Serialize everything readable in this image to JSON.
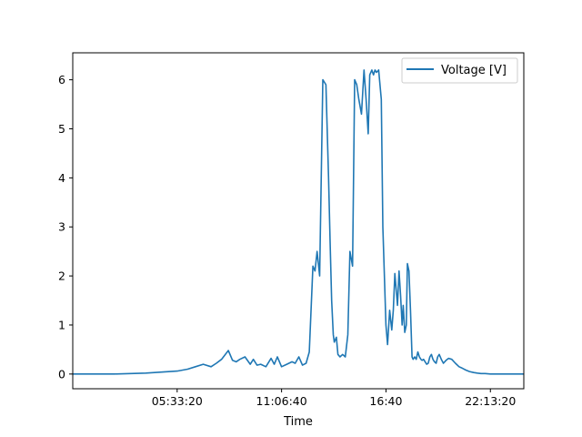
{
  "chart_data": {
    "type": "line",
    "title": "",
    "xlabel": "Time",
    "ylabel": "",
    "x_unit": "seconds since midnight",
    "xlim": [
      0,
      86400
    ],
    "ylim": [
      -0.3,
      6.55
    ],
    "x_ticks": [
      {
        "value": 20000,
        "label": "05:33:20"
      },
      {
        "value": 40000,
        "label": "11:06:40"
      },
      {
        "value": 60000,
        "label": "16:40"
      },
      {
        "value": 80000,
        "label": "22:13:20"
      }
    ],
    "y_ticks": [
      0,
      1,
      2,
      3,
      4,
      5,
      6
    ],
    "grid": false,
    "legend": {
      "position": "top-right",
      "entries": [
        "Voltage [V]"
      ]
    },
    "series": [
      {
        "name": "Voltage [V]",
        "color": "#1f77b4",
        "x": [
          0,
          8000,
          14000,
          17000,
          20000,
          22000,
          23500,
          25000,
          26500,
          27500,
          28500,
          29800,
          30600,
          31300,
          32000,
          33000,
          34000,
          34600,
          35300,
          36000,
          37000,
          38000,
          38600,
          39200,
          40000,
          41000,
          42000,
          42600,
          43300,
          44000,
          44700,
          45300,
          46000,
          46400,
          46800,
          47300,
          47900,
          48500,
          49000,
          49300,
          49600,
          49900,
          50100,
          50500,
          50800,
          51200,
          51700,
          52200,
          52700,
          53100,
          53600,
          54000,
          54400,
          54800,
          55300,
          55800,
          56200,
          56600,
          56900,
          57300,
          57600,
          57900,
          58200,
          58600,
          59100,
          59400,
          59700,
          60000,
          60300,
          60700,
          61100,
          61400,
          61700,
          62200,
          62500,
          62800,
          63100,
          63300,
          63600,
          63900,
          64100,
          64400,
          64700,
          65000,
          65200,
          65500,
          65800,
          66100,
          66400,
          66700,
          66900,
          67200,
          67500,
          67800,
          68100,
          68400,
          68700,
          69000,
          69300,
          69600,
          69900,
          70200,
          70600,
          71000,
          71500,
          72000,
          72600,
          73300,
          74000,
          74600,
          75300,
          76000,
          76800,
          77500,
          78200,
          79000,
          80000,
          81500,
          83000,
          84500,
          86400
        ],
        "y": [
          0.0,
          0.0,
          0.02,
          0.04,
          0.06,
          0.1,
          0.15,
          0.2,
          0.15,
          0.22,
          0.3,
          0.48,
          0.28,
          0.25,
          0.3,
          0.35,
          0.2,
          0.3,
          0.18,
          0.2,
          0.15,
          0.32,
          0.2,
          0.35,
          0.15,
          0.2,
          0.25,
          0.22,
          0.35,
          0.18,
          0.22,
          0.45,
          2.2,
          2.1,
          2.5,
          2.0,
          6.0,
          5.9,
          4.0,
          2.7,
          1.5,
          0.8,
          0.65,
          0.75,
          0.4,
          0.35,
          0.4,
          0.35,
          0.8,
          2.5,
          2.2,
          6.0,
          5.9,
          5.6,
          5.3,
          6.2,
          5.6,
          4.9,
          6.1,
          6.2,
          6.1,
          6.2,
          6.15,
          6.2,
          5.6,
          3.0,
          2.0,
          1.0,
          0.6,
          1.3,
          0.9,
          1.3,
          2.05,
          1.4,
          2.1,
          1.6,
          1.0,
          1.4,
          0.85,
          1.0,
          2.25,
          2.1,
          1.3,
          0.35,
          0.3,
          0.35,
          0.3,
          0.45,
          0.35,
          0.3,
          0.28,
          0.3,
          0.25,
          0.2,
          0.22,
          0.35,
          0.4,
          0.3,
          0.25,
          0.22,
          0.35,
          0.4,
          0.3,
          0.22,
          0.28,
          0.32,
          0.3,
          0.22,
          0.15,
          0.12,
          0.08,
          0.05,
          0.03,
          0.02,
          0.01,
          0.01,
          0.0,
          0.0,
          0.0,
          0.0,
          0.0
        ]
      }
    ]
  }
}
